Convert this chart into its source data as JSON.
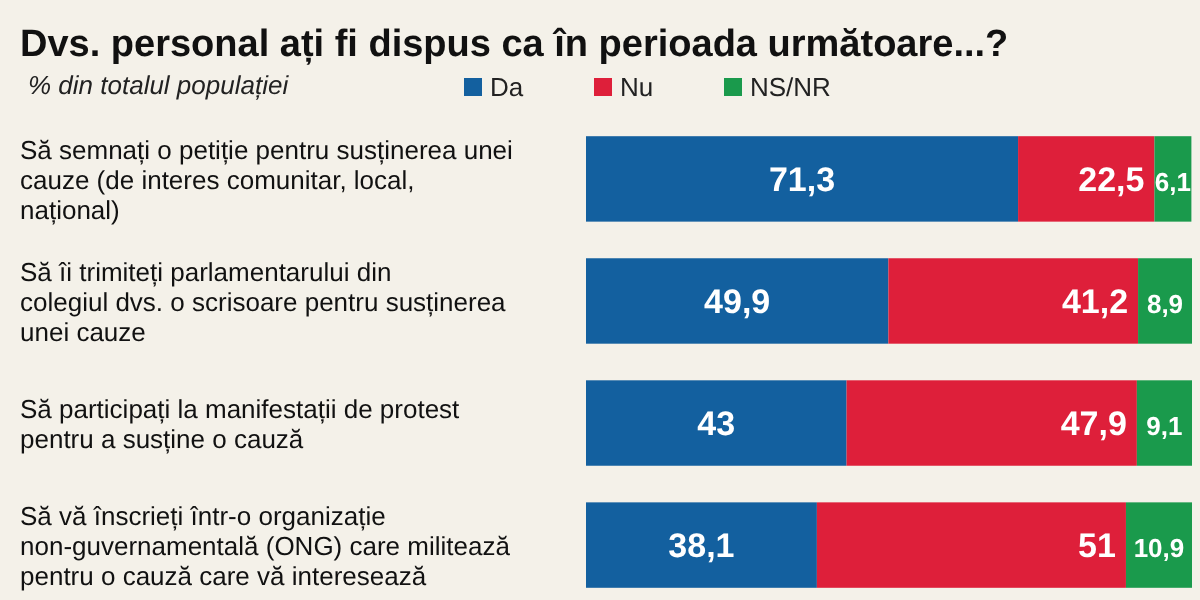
{
  "chart_data": {
    "type": "bar",
    "orientation": "horizontal",
    "stacked": true,
    "title": "Dvs. personal ați fi dispus ca în perioada următoare...?",
    "subtitle": "% din totalul populației",
    "categories": [
      "Să semnați o petiție pentru susținerea unei cauze (de interes comunitar, local, național)",
      "Să îi trimiteți parlamentarului din colegiul dvs. o scrisoare pentru susținerea unei cauze",
      "Să participați la manifestații de protest pentru a susține o cauză",
      "Să vă înscrieți într-o organizație non-guvernamentală (ONG) care militează pentru o cauză care vă interesează"
    ],
    "series": [
      {
        "name": "Da",
        "color": "#13609f",
        "values": [
          71.3,
          49.9,
          43,
          38.1
        ],
        "value_labels": [
          "71,3",
          "49,9",
          "43",
          "38,1"
        ]
      },
      {
        "name": "Nu",
        "color": "#de1f3a",
        "values": [
          22.5,
          41.2,
          47.9,
          51
        ],
        "value_labels": [
          "22,5",
          "41,2",
          "47,9",
          "51"
        ]
      },
      {
        "name": "NS/NR",
        "color": "#1a9a4c",
        "values": [
          6.1,
          8.9,
          9.1,
          10.9
        ],
        "value_labels": [
          "6,1",
          "8,9",
          "9,1",
          "10,9"
        ]
      }
    ],
    "xlim": [
      0,
      100
    ],
    "tick_labels": "y",
    "legend": "top",
    "grid": false
  }
}
